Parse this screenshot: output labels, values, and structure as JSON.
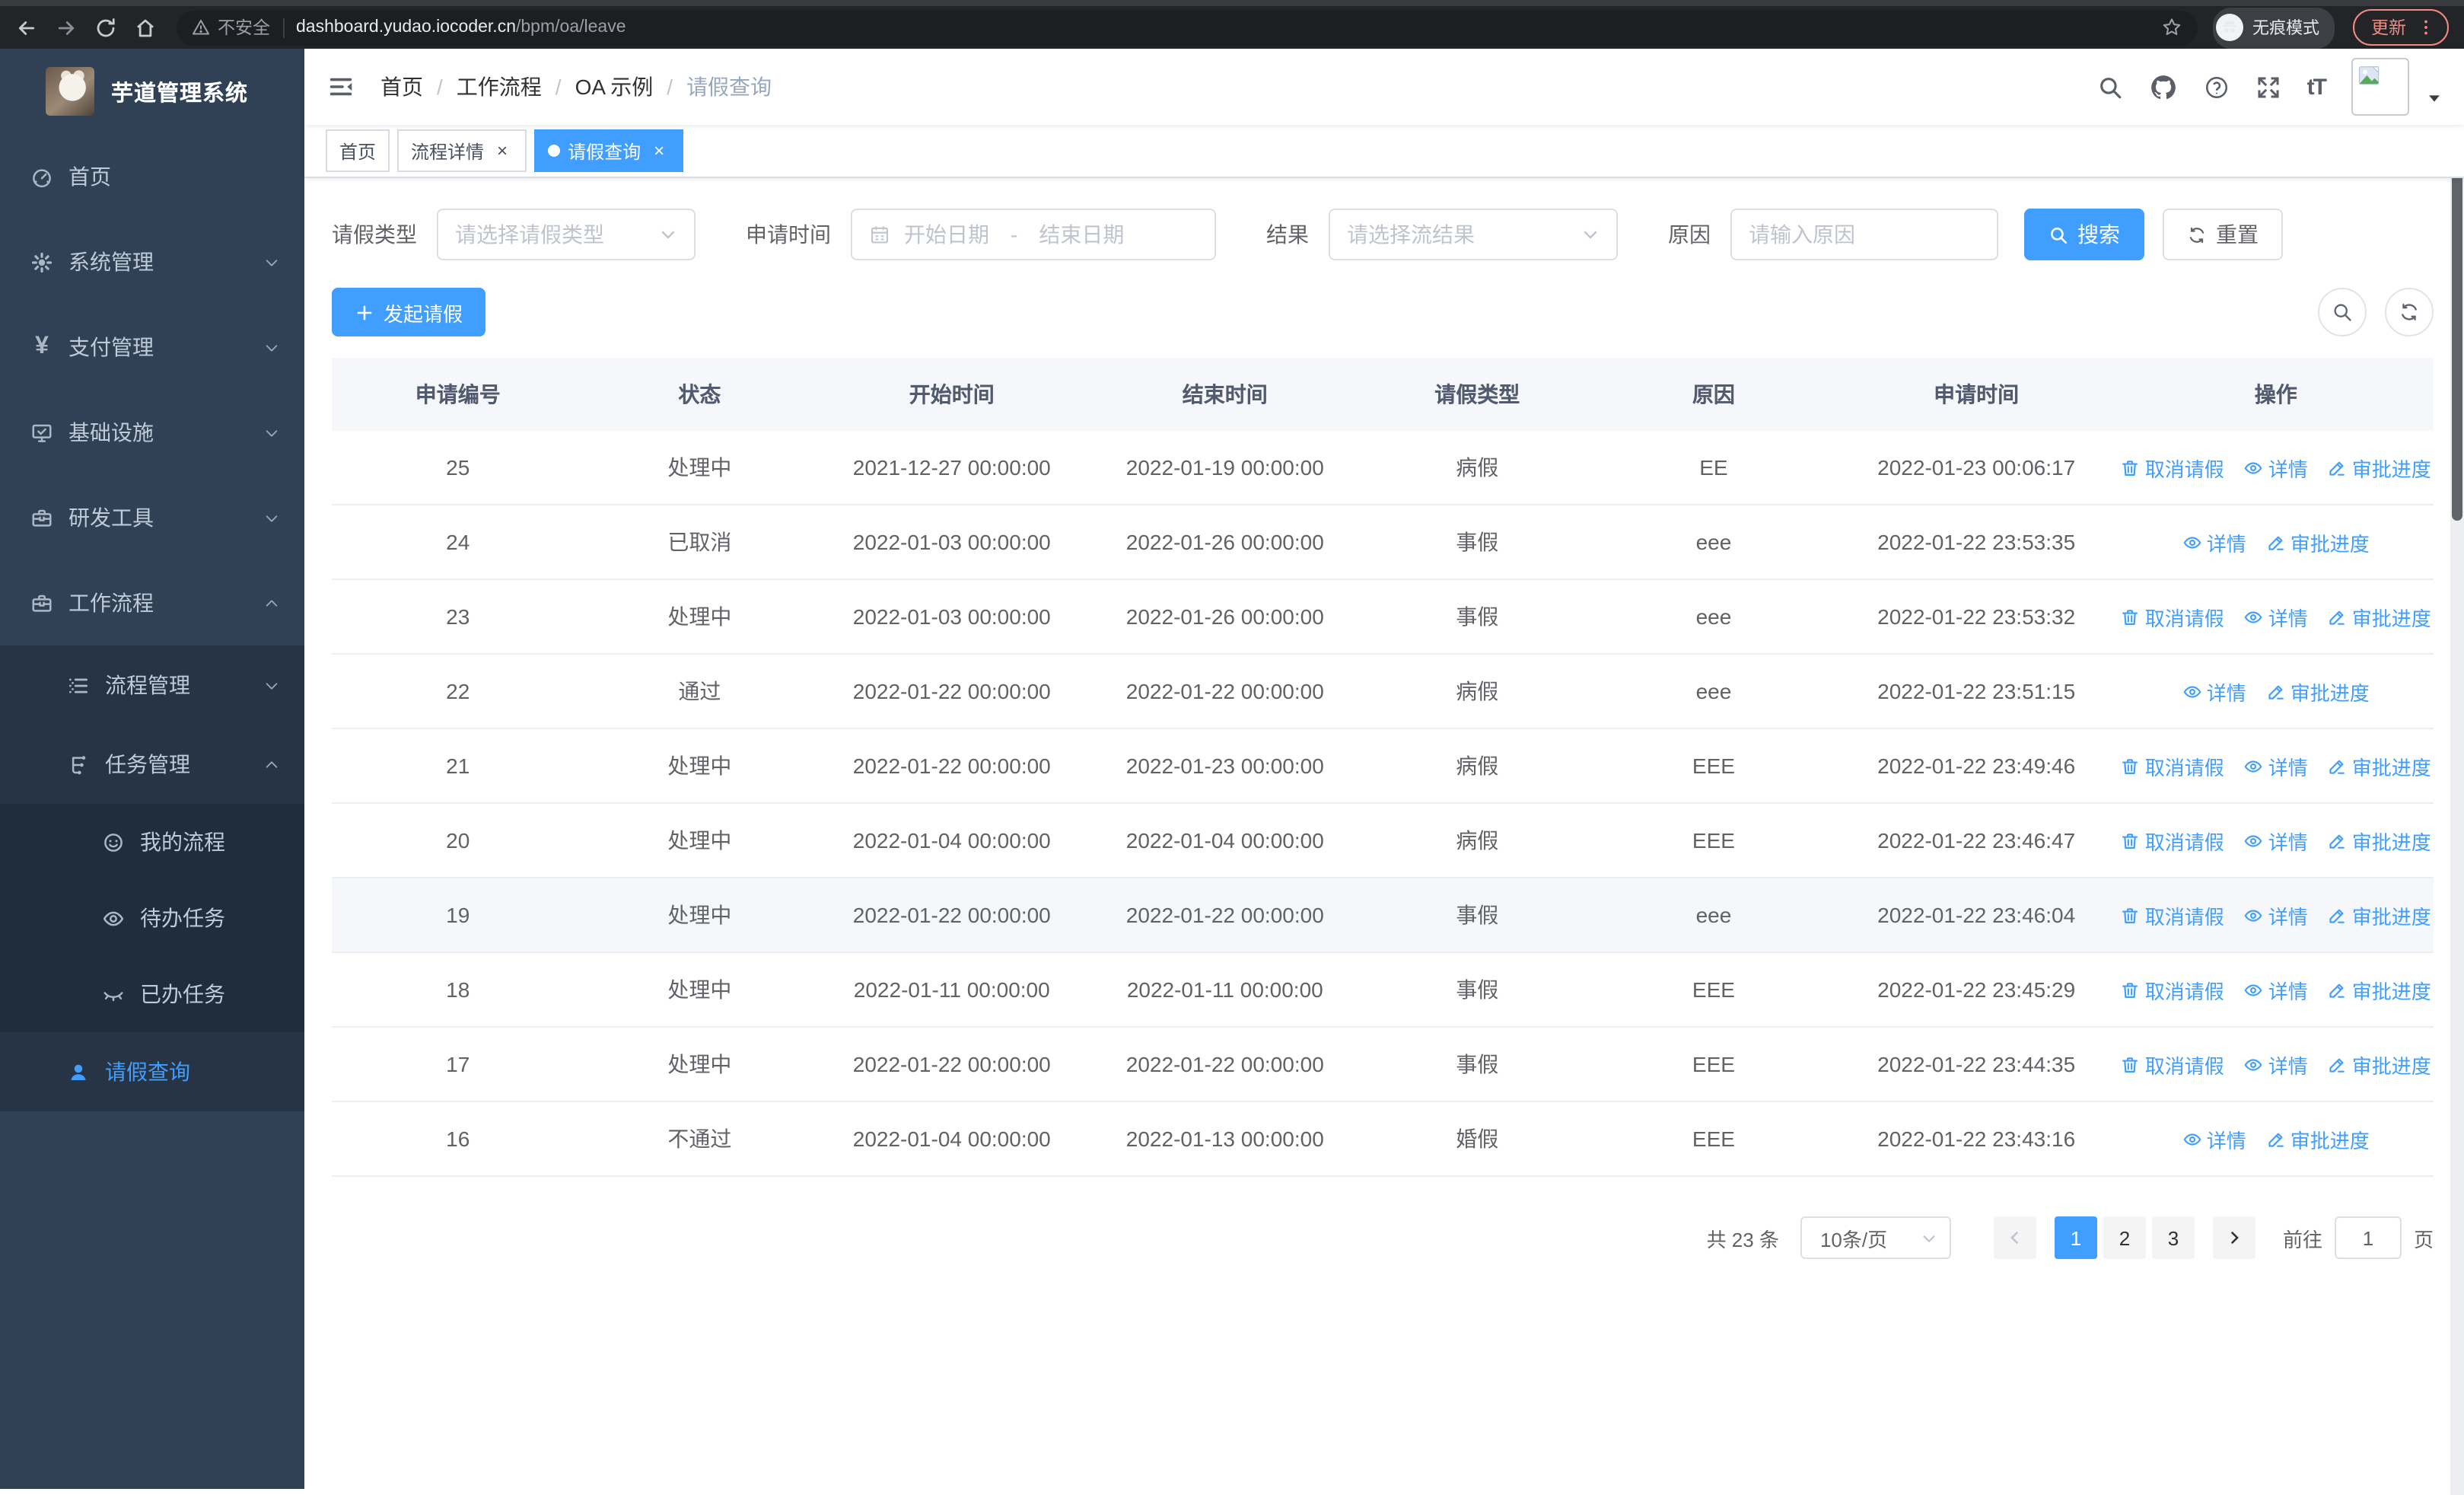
{
  "browser": {
    "not_secure": "不安全",
    "url_host": "dashboard.yudao.iocoder.cn",
    "url_path": "/bpm/oa/leave",
    "incognito_label": "无痕模式",
    "update_label": "更新"
  },
  "sidebar": {
    "title": "芋道管理系统",
    "items": [
      {
        "key": "home",
        "label": "首页",
        "icon": "home",
        "level": 1
      },
      {
        "key": "system",
        "label": "系统管理",
        "icon": "system",
        "level": 1,
        "chevron": "down"
      },
      {
        "key": "payment",
        "label": "支付管理",
        "icon": "payment",
        "level": 1,
        "chevron": "down"
      },
      {
        "key": "infra",
        "label": "基础设施",
        "icon": "infra",
        "level": 1,
        "chevron": "down"
      },
      {
        "key": "devtools",
        "label": "研发工具",
        "icon": "devtools",
        "level": 1,
        "chevron": "down"
      },
      {
        "key": "workflow",
        "label": "工作流程",
        "icon": "workflow",
        "level": 1,
        "chevron": "up"
      },
      {
        "key": "process-mgmt",
        "label": "流程管理",
        "icon": "process",
        "level": 2,
        "chevron": "down"
      },
      {
        "key": "task-mgmt",
        "label": "任务管理",
        "icon": "task",
        "level": 2,
        "chevron": "up"
      },
      {
        "key": "my-process",
        "label": "我的流程",
        "icon": "myflow",
        "level": 3
      },
      {
        "key": "todo-task",
        "label": "待办任务",
        "icon": "todo",
        "level": 3
      },
      {
        "key": "done-task",
        "label": "已办任务",
        "icon": "done",
        "level": 3
      },
      {
        "key": "leave-query",
        "label": "请假查询",
        "icon": "leave",
        "level": 2,
        "active": true
      }
    ]
  },
  "navbar": {
    "breadcrumb": [
      "首页",
      "工作流程",
      "OA 示例",
      "请假查询"
    ],
    "separator": "/"
  },
  "tags": [
    {
      "key": "home",
      "label": "首页",
      "closable": false,
      "active": false
    },
    {
      "key": "process-detail",
      "label": "流程详情",
      "closable": true,
      "active": false
    },
    {
      "key": "leave-query",
      "label": "请假查询",
      "closable": true,
      "active": true
    }
  ],
  "filters": {
    "leave_type_label": "请假类型",
    "leave_type_placeholder": "请选择请假类型",
    "apply_time_label": "申请时间",
    "start_date_placeholder": "开始日期",
    "range_separator": "-",
    "end_date_placeholder": "结束日期",
    "result_label": "结果",
    "result_placeholder": "请选择流结果",
    "reason_label": "原因",
    "reason_placeholder": "请输入原因",
    "search_label": "搜索",
    "reset_label": "重置"
  },
  "toolbar": {
    "create_label": "发起请假"
  },
  "table": {
    "columns": [
      "申请编号",
      "状态",
      "开始时间",
      "结束时间",
      "请假类型",
      "原因",
      "申请时间",
      "操作"
    ],
    "action_labels": {
      "cancel": "取消请假",
      "detail": "详情",
      "progress": "审批进度"
    },
    "rows": [
      {
        "id": "25",
        "status": "处理中",
        "start": "2021-12-27 00:00:00",
        "end": "2022-01-19 00:00:00",
        "type": "病假",
        "reason": "EE",
        "apply_time": "2022-01-23 00:06:17",
        "actions": [
          "cancel",
          "detail",
          "progress"
        ],
        "highlight": false
      },
      {
        "id": "24",
        "status": "已取消",
        "start": "2022-01-03 00:00:00",
        "end": "2022-01-26 00:00:00",
        "type": "事假",
        "reason": "eee",
        "apply_time": "2022-01-22 23:53:35",
        "actions": [
          "detail",
          "progress"
        ],
        "highlight": false
      },
      {
        "id": "23",
        "status": "处理中",
        "start": "2022-01-03 00:00:00",
        "end": "2022-01-26 00:00:00",
        "type": "事假",
        "reason": "eee",
        "apply_time": "2022-01-22 23:53:32",
        "actions": [
          "cancel",
          "detail",
          "progress"
        ],
        "highlight": false
      },
      {
        "id": "22",
        "status": "通过",
        "start": "2022-01-22 00:00:00",
        "end": "2022-01-22 00:00:00",
        "type": "病假",
        "reason": "eee",
        "apply_time": "2022-01-22 23:51:15",
        "actions": [
          "detail",
          "progress"
        ],
        "highlight": false
      },
      {
        "id": "21",
        "status": "处理中",
        "start": "2022-01-22 00:00:00",
        "end": "2022-01-23 00:00:00",
        "type": "病假",
        "reason": "EEE",
        "apply_time": "2022-01-22 23:49:46",
        "actions": [
          "cancel",
          "detail",
          "progress"
        ],
        "highlight": false
      },
      {
        "id": "20",
        "status": "处理中",
        "start": "2022-01-04 00:00:00",
        "end": "2022-01-04 00:00:00",
        "type": "病假",
        "reason": "EEE",
        "apply_time": "2022-01-22 23:46:47",
        "actions": [
          "cancel",
          "detail",
          "progress"
        ],
        "highlight": false
      },
      {
        "id": "19",
        "status": "处理中",
        "start": "2022-01-22 00:00:00",
        "end": "2022-01-22 00:00:00",
        "type": "事假",
        "reason": "eee",
        "apply_time": "2022-01-22 23:46:04",
        "actions": [
          "cancel",
          "detail",
          "progress"
        ],
        "highlight": true
      },
      {
        "id": "18",
        "status": "处理中",
        "start": "2022-01-11 00:00:00",
        "end": "2022-01-11 00:00:00",
        "type": "事假",
        "reason": "EEE",
        "apply_time": "2022-01-22 23:45:29",
        "actions": [
          "cancel",
          "detail",
          "progress"
        ],
        "highlight": false
      },
      {
        "id": "17",
        "status": "处理中",
        "start": "2022-01-22 00:00:00",
        "end": "2022-01-22 00:00:00",
        "type": "事假",
        "reason": "EEE",
        "apply_time": "2022-01-22 23:44:35",
        "actions": [
          "cancel",
          "detail",
          "progress"
        ],
        "highlight": false
      },
      {
        "id": "16",
        "status": "不通过",
        "start": "2022-01-04 00:00:00",
        "end": "2022-01-13 00:00:00",
        "type": "婚假",
        "reason": "EEE",
        "apply_time": "2022-01-22 23:43:16",
        "actions": [
          "detail",
          "progress"
        ],
        "highlight": false
      }
    ]
  },
  "pagination": {
    "total": "共 23 条",
    "page_size": "10条/页",
    "pages": [
      "1",
      "2",
      "3"
    ],
    "active_page": "1",
    "goto_label": "前往",
    "goto_value": "1",
    "page_unit": "页"
  },
  "colors": {
    "accent": "#409eff",
    "sidebar_bg": "#304156",
    "sidebar_sub_bg": "#263445",
    "sidebar_subsub_bg": "#1f2d3d",
    "update_accent": "#f28b82"
  }
}
